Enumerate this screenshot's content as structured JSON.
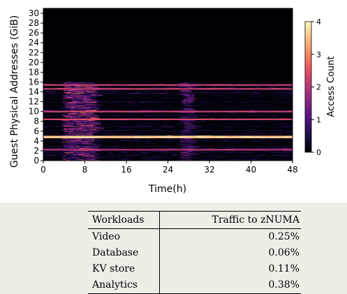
{
  "chart_data": {
    "type": "heatmap",
    "xlabel": "Time(h)",
    "ylabel": "Guest Physical Addresses (GiB)",
    "xlim": [
      0,
      48
    ],
    "ylim": [
      0,
      31
    ],
    "x_ticks": [
      "0",
      "8",
      "16",
      "24",
      "32",
      "40",
      "48"
    ],
    "y_ticks": [
      "0",
      "2",
      "4",
      "6",
      "8",
      "10",
      "12",
      "14",
      "16",
      "18",
      "20",
      "22",
      "24",
      "26",
      "28",
      "30"
    ],
    "colorbar": {
      "label": "Access Count",
      "range": [
        0,
        4
      ],
      "ticks": [
        "0",
        "1",
        "2",
        "3",
        "4"
      ],
      "colormap": "magma"
    },
    "features": {
      "active_region_gib": [
        0,
        16
      ],
      "inactive_region_gib": [
        16,
        31
      ],
      "hot_band_gib": 4.8,
      "bright_bands_gib": [
        15.4,
        14.6,
        10.0,
        8.4,
        2.2
      ],
      "burst_start_h": 3.5,
      "burst_end_h": 9.5,
      "spike_h": 27
    }
  },
  "table": {
    "headers": [
      "Workloads",
      "Traffic to zNUMA"
    ],
    "rows": [
      {
        "workload": "Video",
        "traffic": "0.25%"
      },
      {
        "workload": "Database",
        "traffic": "0.06%"
      },
      {
        "workload": "KV store",
        "traffic": "0.11%"
      },
      {
        "workload": "Analytics",
        "traffic": "0.38%"
      }
    ]
  }
}
